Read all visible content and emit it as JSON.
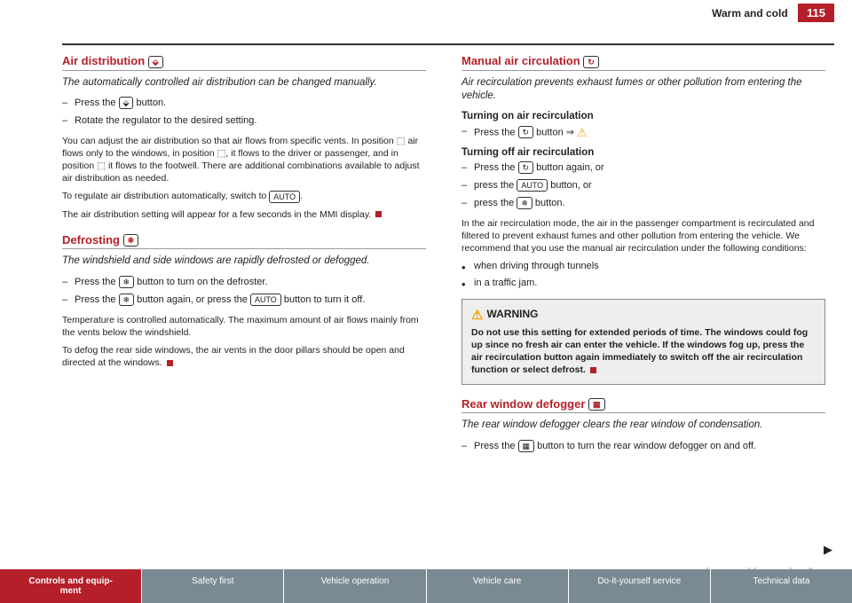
{
  "header": {
    "chapter": "Warm and cold",
    "page": "115"
  },
  "left": {
    "airdist": {
      "heading": "Air distribution",
      "subtitle": "The automatically controlled air distribution can be changed manually.",
      "steps": [
        "Press the [icon] button.",
        "Rotate the regulator to the desired setting."
      ],
      "para1": "You can adjust the air distribution so that air flows from specific vents. In position ⬚ air flows only to the windows, in position ⬚, it flows to the driver or passenger, and in position ⬚ it flows to the footwell. There are additional combinations available to adjust air distribution as needed.",
      "para2_a": "To regulate air distribution automatically, switch to ",
      "para2_auto": "AUTO",
      "para2_b": ".",
      "para3": "The air distribution setting will appear for a few seconds in the MMI display."
    },
    "defrost": {
      "heading": "Defrosting",
      "subtitle": "The windshield and side windows are rapidly defrosted or defogged.",
      "steps": {
        "s1": "Press the [icon] button to turn on the defroster.",
        "s2a": "Press the [icon] button again, or press the ",
        "s2auto": "AUTO",
        "s2b": " button to turn it off."
      },
      "para1": "Temperature is controlled automatically. The maximum amount of air flows mainly from the vents below the windshield.",
      "para2": "To defog the rear side windows, the air vents in the door pillars should be open and directed at the windows."
    }
  },
  "right": {
    "recirc": {
      "heading": "Manual air circulation",
      "subtitle": "Air recirculation prevents exhaust fumes or other pollution from entering the vehicle.",
      "on_heading": "Turning on air recirculation",
      "on_step": "Press the [icon] button ⇒",
      "off_heading": "Turning off air recirculation",
      "off_steps": {
        "s1": "Press the [icon] button again, or",
        "s2a": "press the ",
        "s2auto": "AUTO",
        "s2b": " button, or",
        "s3": "press the [icon] button."
      },
      "para1": "In the air recirculation mode, the air in the passenger compartment is recirculated and filtered to prevent exhaust fumes and other pollution from entering the vehicle. We recommend that you use the manual air recirculation under the following conditions:",
      "bullets": [
        "when driving through tunnels",
        "in a traffic jam."
      ],
      "warn_title": "WARNING",
      "warn_body": "Do not use this setting for extended periods of time. The windows could fog up since no fresh air can enter the vehicle. If the windows fog up, press the air recirculation button again immediately to switch off the air recirculation function or select defrost."
    },
    "reardefog": {
      "heading": "Rear window defogger",
      "subtitle": "The rear window defogger clears the rear window of condensation.",
      "step": "Press the [icon] button to turn the rear window defogger on and off."
    }
  },
  "footer": {
    "tabs": [
      "Controls and equipment",
      "Safety first",
      "Vehicle operation",
      "Vehicle care",
      "Do-it-yourself service",
      "Technical data"
    ]
  },
  "watermark": "carmanualsonline.info"
}
